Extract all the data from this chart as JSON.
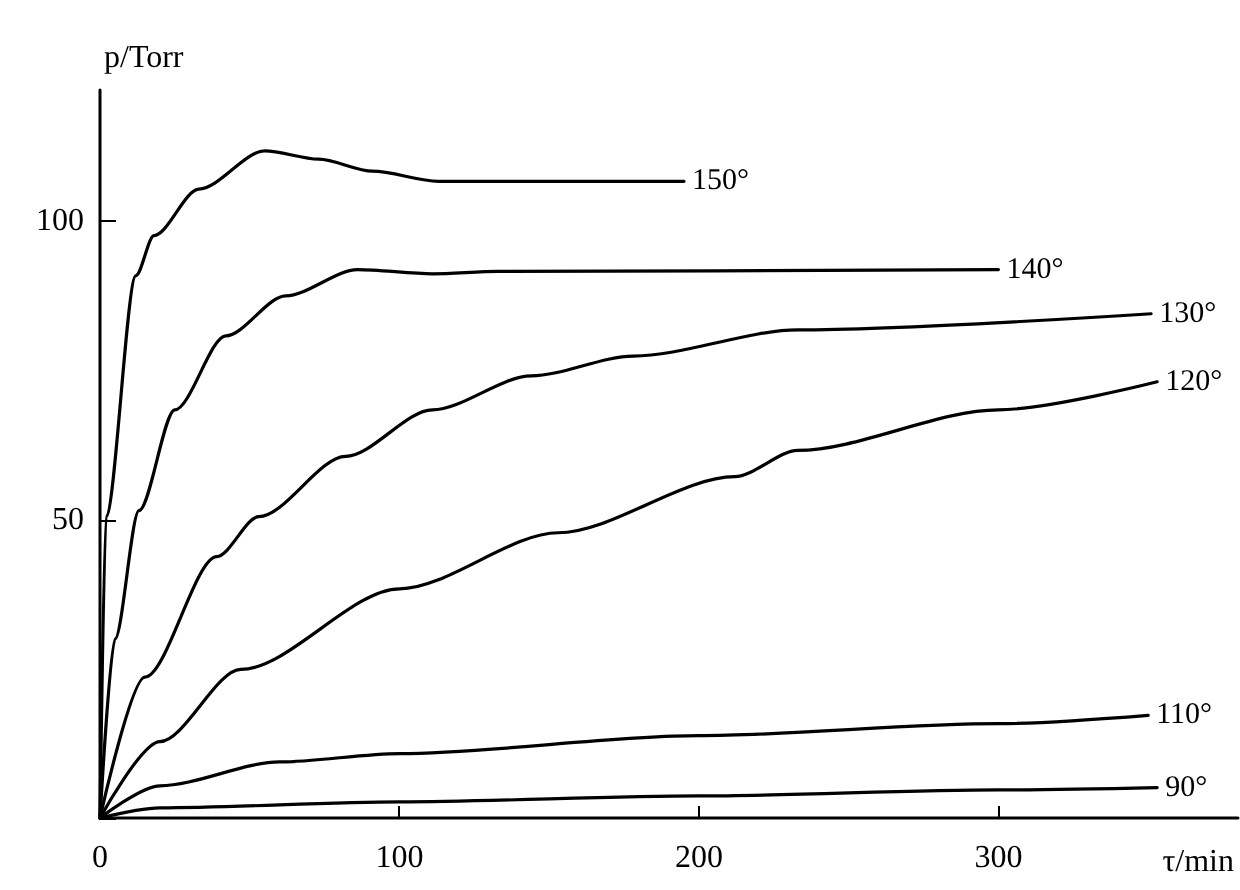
{
  "chart_data": {
    "type": "line",
    "xlabel": "τ/min",
    "ylabel": "p/Torr",
    "xlim": [
      0,
      380
    ],
    "ylim": [
      0,
      122
    ],
    "xticks": [
      0,
      100,
      200,
      300
    ],
    "yticks": [
      {
        "value": 0,
        "label": null
      },
      50,
      100
    ],
    "grid": false,
    "legend": false,
    "marker": "none",
    "line_style": "solid",
    "series": [
      {
        "name": "150°",
        "color": "#000000",
        "x": [
          0,
          2,
          12,
          18,
          33,
          55,
          73,
          91,
          113,
          195
        ],
        "values": [
          0,
          50.5,
          90.9,
          97.6,
          105.4,
          111.8,
          110.4,
          108.4,
          106.7,
          106.7
        ]
      },
      {
        "name": "140°",
        "color": "#000000",
        "x": [
          0,
          5,
          13,
          25,
          42,
          62,
          86,
          111,
          133,
          300
        ],
        "values": [
          0,
          30,
          51.5,
          68.4,
          80.8,
          87.5,
          91.9,
          91.2,
          91.6,
          91.9
        ]
      },
      {
        "name": "130°",
        "color": "#000000",
        "x": [
          0,
          15,
          39,
          53,
          82,
          111,
          144,
          178,
          233,
          351
        ],
        "values": [
          0,
          23.6,
          43.8,
          50.5,
          60.6,
          68.4,
          74.1,
          77.4,
          81.8,
          84.5
        ]
      },
      {
        "name": "120°",
        "color": "#000000",
        "x": [
          0,
          20,
          47,
          100,
          153,
          212,
          233,
          300,
          353
        ],
        "values": [
          0,
          12.8,
          24.9,
          38.4,
          47.8,
          57.2,
          61.6,
          68.4,
          73.1
        ]
      },
      {
        "name": "110°",
        "color": "#000000",
        "x": [
          0,
          20,
          60,
          100,
          200,
          300,
          350
        ],
        "values": [
          0,
          5.4,
          9.4,
          10.8,
          13.8,
          15.8,
          17.2
        ]
      },
      {
        "name": "90°",
        "color": "#000000",
        "x": [
          0,
          20,
          100,
          200,
          300,
          353
        ],
        "values": [
          0,
          1.7,
          2.7,
          3.7,
          4.7,
          5.1
        ]
      }
    ]
  }
}
